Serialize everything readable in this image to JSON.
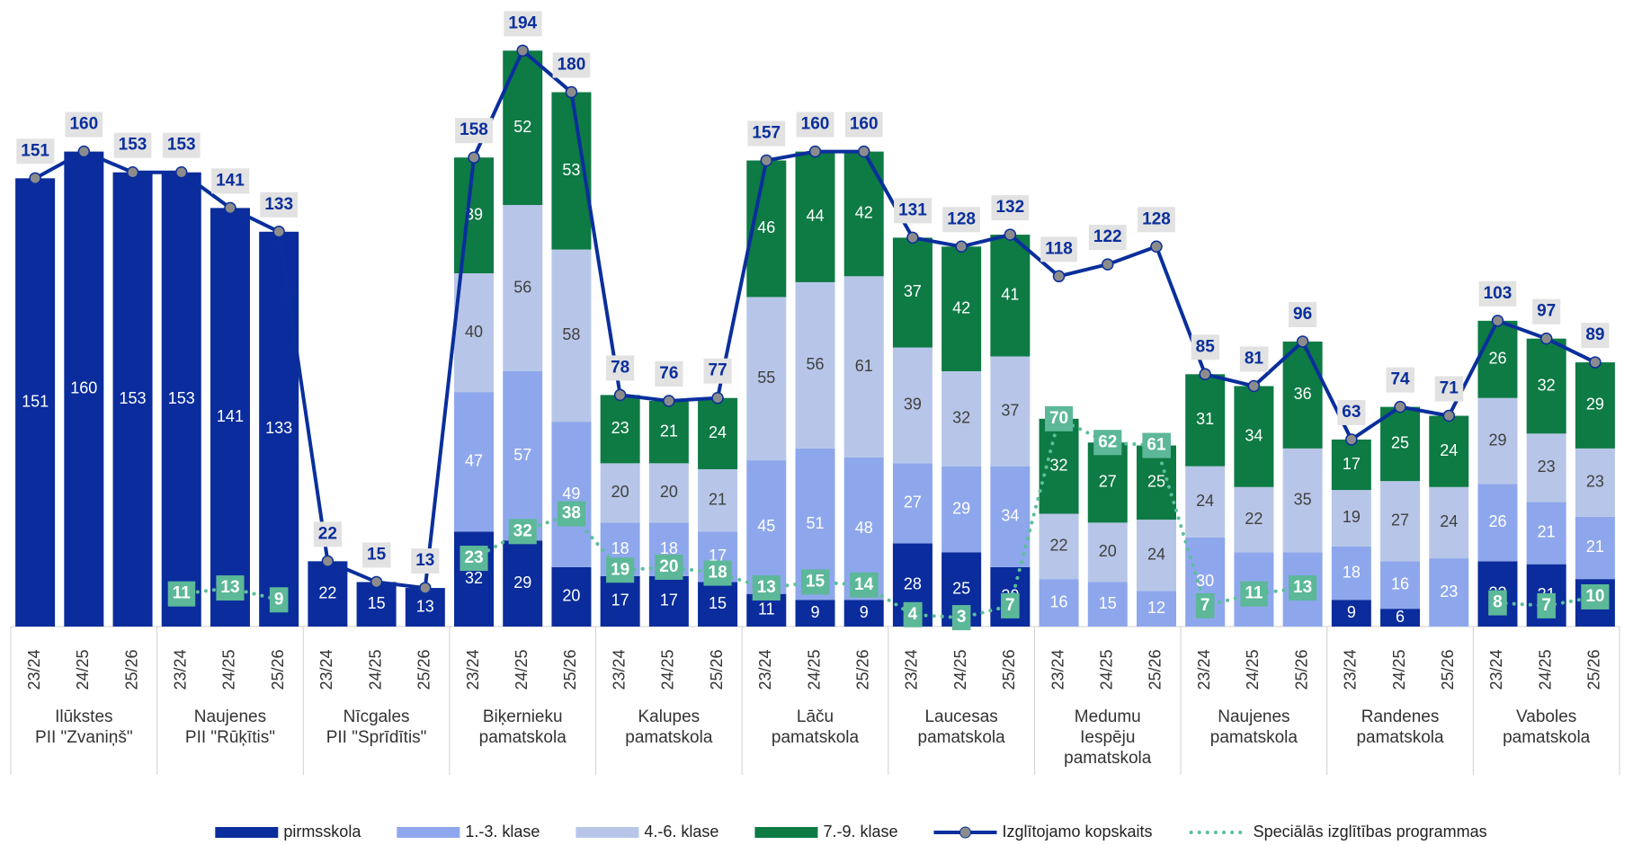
{
  "chart_data": {
    "type": "bar",
    "stacked": true,
    "ylim": [
      0,
      205
    ],
    "categories": [
      "23/24",
      "24/25",
      "25/26",
      "23/24",
      "24/25",
      "25/26",
      "23/24",
      "24/25",
      "25/26",
      "23/24",
      "24/25",
      "25/26",
      "23/24",
      "24/25",
      "25/26",
      "23/24",
      "24/25",
      "25/26",
      "23/24",
      "24/25",
      "25/26",
      "23/24",
      "24/25",
      "25/26",
      "23/24",
      "24/25",
      "25/26",
      "23/24",
      "24/25",
      "25/26",
      "23/24",
      "24/25",
      "25/26"
    ],
    "groups": [
      "Ilūkstes\nPII \"Zvaniņš\"",
      "Naujenes\nPII \"Rūķītis\"",
      "Nīcgales\nPII \"Sprīdītis\"",
      "Biķernieku\npamatskola",
      "Kalupes\npamatskola",
      "Lāču\npamatskola",
      "Laucesas\npamatskola",
      "Medumu\nIespēju\npamatskola",
      "Naujenes\npamatskola",
      "Randenes\npamatskola",
      "Vaboles\npamatskola"
    ],
    "legend": "bottom",
    "series": [
      {
        "name": "pirmsskola",
        "type": "bar",
        "color": "#0a2c9c",
        "label_color": "#ffffff",
        "values": [
          151,
          160,
          153,
          153,
          141,
          133,
          22,
          15,
          13,
          32,
          29,
          20,
          17,
          17,
          15,
          11,
          9,
          9,
          28,
          25,
          20,
          null,
          null,
          null,
          null,
          null,
          null,
          9,
          6,
          null,
          22,
          21,
          16
        ]
      },
      {
        "name": "1.-3. klase",
        "type": "bar",
        "color": "#8ea7ec",
        "label_color": "#ffffff",
        "values": [
          null,
          null,
          null,
          null,
          null,
          null,
          null,
          null,
          null,
          47,
          57,
          49,
          18,
          18,
          17,
          45,
          51,
          48,
          27,
          29,
          34,
          16,
          15,
          12,
          30,
          25,
          25,
          18,
          16,
          23,
          26,
          21,
          21
        ]
      },
      {
        "name": "4.-6. klase",
        "type": "bar",
        "color": "#b7c6e8",
        "label_color": "#404040",
        "values": [
          null,
          null,
          null,
          null,
          null,
          null,
          null,
          null,
          null,
          40,
          56,
          58,
          20,
          20,
          21,
          55,
          56,
          61,
          39,
          32,
          37,
          22,
          20,
          24,
          24,
          22,
          35,
          19,
          27,
          24,
          29,
          23,
          23
        ]
      },
      {
        "name": "7.-9. klase",
        "type": "bar",
        "color": "#0e7a44",
        "label_color": "#ffffff",
        "values": [
          null,
          null,
          null,
          null,
          null,
          null,
          null,
          null,
          null,
          39,
          52,
          53,
          23,
          21,
          24,
          46,
          44,
          42,
          37,
          42,
          41,
          32,
          27,
          25,
          31,
          34,
          36,
          17,
          25,
          24,
          26,
          32,
          29
        ]
      },
      {
        "name": "Izglītojamo kopskaits",
        "type": "line",
        "color": "#0a2f9c",
        "marker_color": "#8c8c8c",
        "box_color": "#e2e2e2",
        "values": [
          151,
          160,
          153,
          153,
          141,
          133,
          22,
          15,
          13,
          158,
          194,
          180,
          78,
          76,
          77,
          157,
          160,
          160,
          131,
          128,
          132,
          118,
          122,
          128,
          85,
          81,
          96,
          63,
          74,
          71,
          103,
          97,
          89
        ]
      },
      {
        "name": "Speciālās izglītības programmas",
        "type": "dotted",
        "color": "#5cbf9c",
        "box_color": "#5cb898",
        "values": [
          null,
          null,
          null,
          11,
          13,
          9,
          null,
          null,
          null,
          23,
          32,
          38,
          19,
          20,
          18,
          13,
          15,
          14,
          4,
          3,
          7,
          70,
          62,
          61,
          7,
          11,
          13,
          null,
          null,
          null,
          8,
          7,
          10
        ]
      }
    ]
  }
}
